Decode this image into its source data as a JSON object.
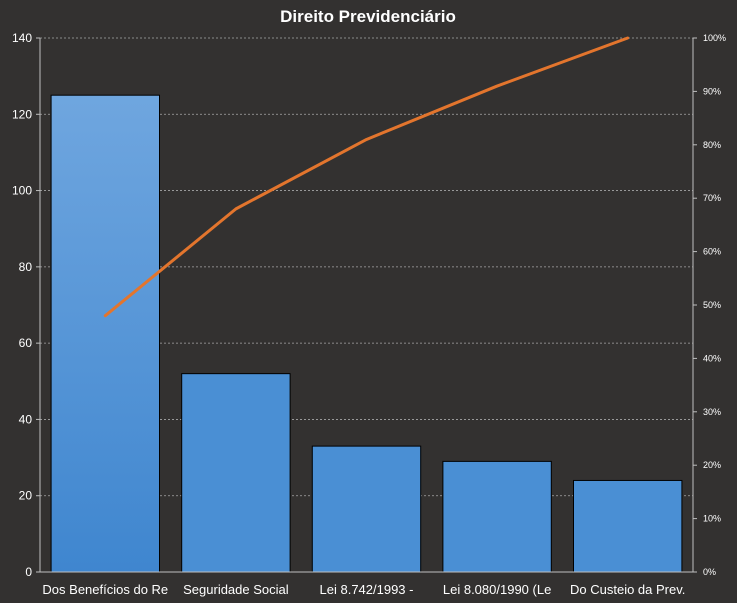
{
  "chart_data": {
    "type": "bar",
    "title": "Direito Previdenciário",
    "categories": [
      "Dos Benefícios do Re",
      "Seguridade Social",
      "Lei 8.742/1993  -",
      "Lei 8.080/1990  (Le",
      "Do Custeio da Prev."
    ],
    "series": [
      {
        "kind": "bar",
        "axis": "primary",
        "values": [
          125,
          52,
          33,
          29,
          24
        ]
      },
      {
        "kind": "line",
        "axis": "secondary",
        "values": [
          0.48,
          0.68,
          0.81,
          0.91,
          1.0
        ]
      }
    ],
    "ylim": [
      0,
      140
    ],
    "yticks": [
      "0",
      "20",
      "40",
      "60",
      "80",
      "100",
      "120",
      "140"
    ],
    "y2lim": [
      0,
      1
    ],
    "y2ticks": [
      "0%",
      "10%",
      "20%",
      "30%",
      "40%",
      "50%",
      "60%",
      "70%",
      "80%",
      "90%",
      "100%"
    ],
    "grid": true,
    "legend": "none",
    "colors": {
      "background": "#333130",
      "bar": "#4a8fd4",
      "bar_light": "#6fa6df",
      "line": "#e3752d",
      "grid": "#a8a8a8",
      "axis": "#bfbfbf",
      "text": "#ffffff"
    }
  }
}
